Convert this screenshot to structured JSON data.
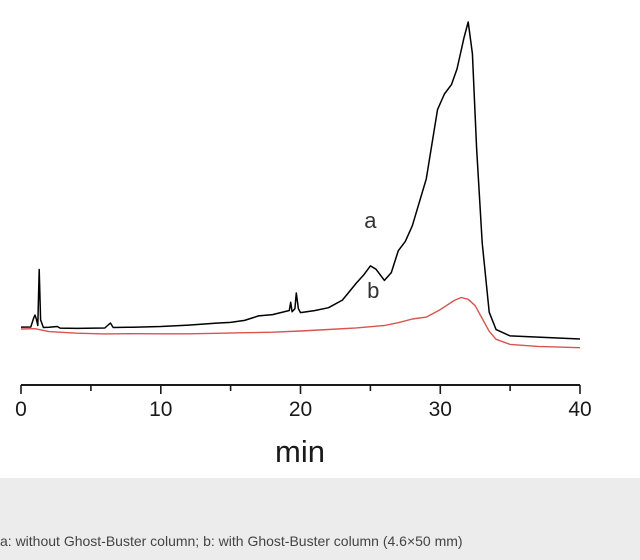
{
  "chart_data": {
    "type": "line",
    "xlabel": "min",
    "xlim": [
      0,
      40
    ],
    "ylim": [
      0,
      100
    ],
    "x_ticks": [
      "0",
      "10",
      "20",
      "30",
      "40"
    ],
    "y_axis_shown": false,
    "grid": false,
    "series": [
      {
        "name": "a",
        "color": "#000000",
        "points": [
          [
            0.0,
            0.6
          ],
          [
            0.7,
            0.7
          ],
          [
            0.9,
            3.5
          ],
          [
            1.0,
            4.5
          ],
          [
            1.1,
            3.2
          ],
          [
            1.2,
            1.2
          ],
          [
            1.3,
            19.0
          ],
          [
            1.4,
            3.0
          ],
          [
            1.6,
            0.6
          ],
          [
            2.0,
            0.7
          ],
          [
            2.6,
            1.0
          ],
          [
            2.8,
            0.5
          ],
          [
            4.0,
            0.5
          ],
          [
            6.0,
            0.8
          ],
          [
            6.4,
            2.4
          ],
          [
            6.6,
            1.0
          ],
          [
            8.0,
            1.2
          ],
          [
            10.0,
            1.6
          ],
          [
            12.0,
            2.2
          ],
          [
            14.0,
            3.0
          ],
          [
            15.0,
            3.3
          ],
          [
            16.0,
            4.0
          ],
          [
            17.0,
            5.5
          ],
          [
            18.0,
            6.0
          ],
          [
            19.2,
            7.4
          ],
          [
            19.3,
            10.0
          ],
          [
            19.4,
            7.0
          ],
          [
            19.6,
            8.0
          ],
          [
            19.7,
            13.0
          ],
          [
            19.85,
            8.0
          ],
          [
            20.0,
            6.8
          ],
          [
            21.0,
            7.5
          ],
          [
            22.0,
            8.5
          ],
          [
            23.0,
            11.0
          ],
          [
            24.0,
            16.5
          ],
          [
            24.5,
            19.0
          ],
          [
            25.0,
            22.0
          ],
          [
            25.4,
            21.0
          ],
          [
            26.0,
            17.5
          ],
          [
            26.5,
            20.0
          ],
          [
            27.0,
            27.0
          ],
          [
            27.5,
            30.0
          ],
          [
            28.0,
            35.0
          ],
          [
            29.0,
            50.0
          ],
          [
            29.8,
            72.0
          ],
          [
            30.3,
            77.0
          ],
          [
            30.8,
            80.0
          ],
          [
            31.2,
            85.0
          ],
          [
            31.7,
            95.0
          ],
          [
            32.0,
            100.0
          ],
          [
            32.3,
            90.0
          ],
          [
            32.6,
            60.0
          ],
          [
            33.0,
            30.0
          ],
          [
            33.5,
            8.0
          ],
          [
            34.0,
            2.5
          ],
          [
            35.0,
            0.6
          ],
          [
            40.0,
            0.0
          ]
        ]
      },
      {
        "name": "b",
        "color": "#d9534f",
        "points": [
          [
            0.0,
            0.0
          ],
          [
            1.0,
            0.2
          ],
          [
            2.0,
            -0.6
          ],
          [
            4.0,
            -0.9
          ],
          [
            6.0,
            -0.9
          ],
          [
            8.0,
            -0.6
          ],
          [
            10.0,
            -0.4
          ],
          [
            12.0,
            -0.2
          ],
          [
            14.0,
            0.2
          ],
          [
            16.0,
            0.6
          ],
          [
            18.0,
            1.0
          ],
          [
            20.0,
            1.6
          ],
          [
            22.0,
            2.3
          ],
          [
            24.0,
            3.0
          ],
          [
            26.0,
            4.0
          ],
          [
            27.0,
            5.0
          ],
          [
            28.0,
            6.3
          ],
          [
            29.0,
            7.0
          ],
          [
            30.0,
            9.5
          ],
          [
            31.0,
            12.5
          ],
          [
            31.5,
            13.5
          ],
          [
            32.0,
            13.0
          ],
          [
            32.5,
            11.0
          ],
          [
            33.0,
            7.0
          ],
          [
            33.5,
            3.0
          ],
          [
            34.0,
            0.5
          ],
          [
            35.0,
            -1.0
          ],
          [
            37.0,
            -1.4
          ],
          [
            40.0,
            -1.5
          ]
        ]
      }
    ],
    "series_labels": [
      {
        "text": "a",
        "x": 25.0,
        "y": 32.0
      },
      {
        "text": "b",
        "x": 25.2,
        "y": 9.8
      }
    ]
  },
  "caption": "a: without Ghost-Buster column; b: with Ghost-Buster column (4.6×50 mm)"
}
